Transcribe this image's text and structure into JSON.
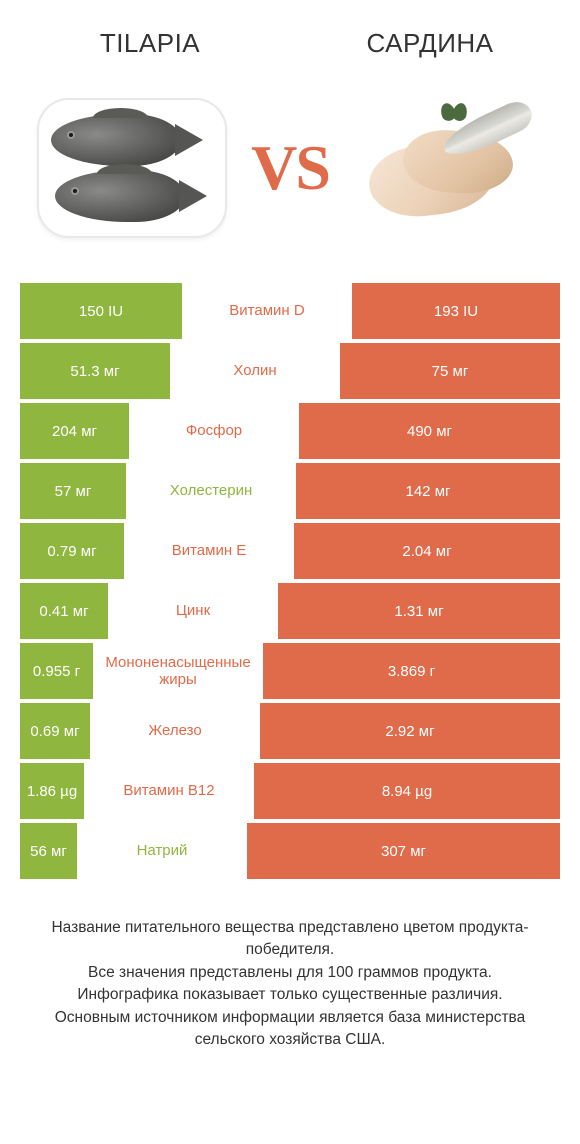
{
  "colors": {
    "green": "#8fb63f",
    "orange": "#e06b4a",
    "background": "#ffffff",
    "text": "#333333"
  },
  "header": {
    "left": "TILAPIA",
    "right": "САРДИНА"
  },
  "vs": "VS",
  "rows": [
    {
      "left_val": "150 IU",
      "label": "Витамин D",
      "right_val": "193 IU",
      "left_w": 120,
      "right_w": 154,
      "winner": "right"
    },
    {
      "left_val": "51.3 мг",
      "label": "Холин",
      "right_val": "75 мг",
      "left_w": 112,
      "right_w": 164,
      "winner": "right"
    },
    {
      "left_val": "204 мг",
      "label": "Фосфор",
      "right_val": "490 мг",
      "left_w": 90,
      "right_w": 216,
      "winner": "right"
    },
    {
      "left_val": "57 мг",
      "label": "Холестерин",
      "right_val": "142 мг",
      "left_w": 96,
      "right_w": 238,
      "winner": "left"
    },
    {
      "left_val": "0.79 мг",
      "label": "Витамин E",
      "right_val": "2.04 мг",
      "left_w": 92,
      "right_w": 236,
      "winner": "right"
    },
    {
      "left_val": "0.41 мг",
      "label": "Цинк",
      "right_val": "1.31 мг",
      "left_w": 88,
      "right_w": 282,
      "winner": "right"
    },
    {
      "left_val": "0.955 г",
      "label": "Мононенасыщенные жиры",
      "right_val": "3.869 г",
      "left_w": 82,
      "right_w": 332,
      "winner": "right"
    },
    {
      "left_val": "0.69 мг",
      "label": "Железо",
      "right_val": "2.92 мг",
      "left_w": 80,
      "right_w": 340,
      "winner": "right"
    },
    {
      "left_val": "1.86 µg",
      "label": "Витамин B12",
      "right_val": "8.94 µg",
      "left_w": 76,
      "right_w": 366,
      "winner": "right"
    },
    {
      "left_val": "56 мг",
      "label": "Натрий",
      "right_val": "307 мг",
      "left_w": 72,
      "right_w": 394,
      "winner": "left"
    }
  ],
  "footer": {
    "l1": "Название питательного вещества представлено цветом продукта-победителя.",
    "l2": "Все значения представлены для 100 граммов продукта.",
    "l3": "Инфографика показывает только существенные различия.",
    "l4": "Основным источником информации является база министерства сельского хозяйства США."
  }
}
